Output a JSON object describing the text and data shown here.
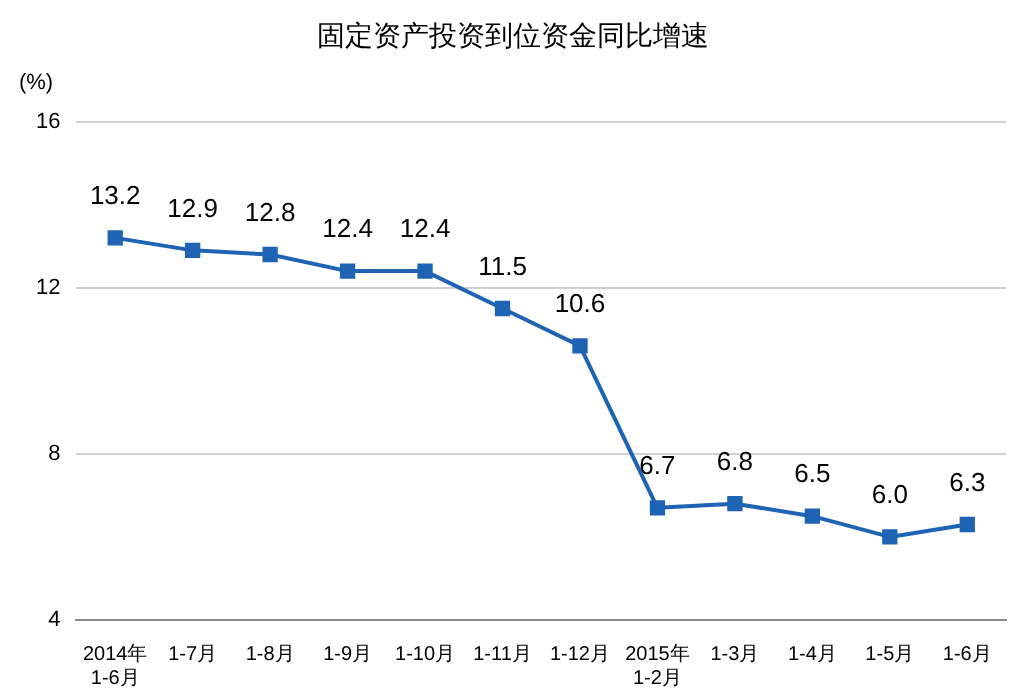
{
  "chart_data": {
    "type": "line",
    "title": "固定资产投资到位资金同比增速",
    "ylabel": "(%)",
    "categories": [
      "2014年\n1-6月",
      "1-7月",
      "1-8月",
      "1-9月",
      "1-10月",
      "1-11月",
      "1-12月",
      "2015年\n1-2月",
      "1-3月",
      "1-4月",
      "1-5月",
      "1-6月"
    ],
    "series": [
      {
        "color": "#1f64b4",
        "values": [
          13.2,
          12.9,
          12.8,
          12.4,
          12.4,
          11.5,
          10.6,
          6.7,
          6.8,
          6.5,
          6.0,
          6.3
        ],
        "value_labels": [
          "13.2",
          "12.9",
          "12.8",
          "12.4",
          "12.4",
          "11.5",
          "10.6",
          "6.7",
          "6.8",
          "6.5",
          "6.0",
          "6.3"
        ]
      }
    ],
    "ylim": [
      4,
      16
    ],
    "yticks": [
      4,
      8,
      12,
      16
    ],
    "grid": "y",
    "legend": false,
    "marker": "square",
    "line_style": "solid"
  }
}
